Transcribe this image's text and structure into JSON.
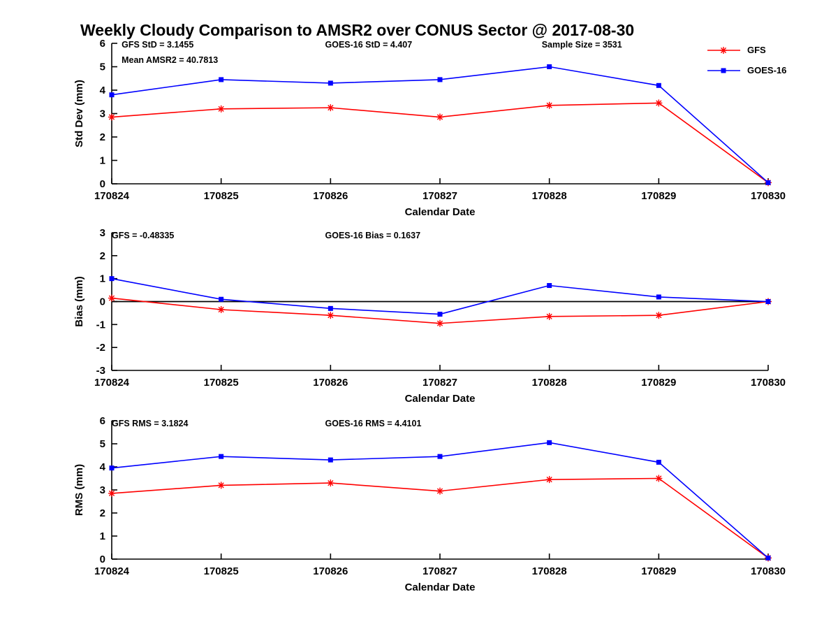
{
  "title": "Weekly Cloudy Comparison to AMSR2 over CONUS Sector @ 2017-08-30",
  "colors": {
    "gfs": "#FF0000",
    "goes16": "#0000FF",
    "axis": "#000000"
  },
  "legend": {
    "items": [
      {
        "label": "GFS",
        "marker": "asterisk",
        "color": "#FF0000"
      },
      {
        "label": "GOES-16",
        "marker": "square",
        "color": "#0000FF"
      }
    ]
  },
  "chart_data": [
    {
      "type": "line",
      "title": "",
      "xlabel": "Calendar Date",
      "ylabel": "Std Dev (mm)",
      "categories": [
        "170824",
        "170825",
        "170826",
        "170827",
        "170828",
        "170829",
        "170830"
      ],
      "ylim": [
        0,
        6
      ],
      "yticks": [
        0,
        1,
        2,
        3,
        4,
        5,
        6
      ],
      "zero_line": false,
      "annotations": [
        {
          "text": "GFS StD = 3.1455",
          "fx": 0.015,
          "dy": 6
        },
        {
          "text": "Mean AMSR2 = 40.7813",
          "fx": 0.015,
          "dy": 28
        },
        {
          "text": "GOES-16 StD = 4.407",
          "fx": 0.325,
          "dy": 6
        },
        {
          "text": "Sample Size = 3531",
          "fx": 0.655,
          "dy": 6
        }
      ],
      "series": [
        {
          "name": "GFS",
          "color": "#FF0000",
          "marker": "asterisk",
          "values": [
            2.85,
            3.2,
            3.25,
            2.85,
            3.35,
            3.45,
            0.05
          ]
        },
        {
          "name": "GOES-16",
          "color": "#0000FF",
          "marker": "square",
          "values": [
            3.8,
            4.45,
            4.3,
            4.45,
            5.0,
            4.2,
            0.05
          ]
        }
      ]
    },
    {
      "type": "line",
      "title": "",
      "xlabel": "Calendar Date",
      "ylabel": "Bias (mm)",
      "categories": [
        "170824",
        "170825",
        "170826",
        "170827",
        "170828",
        "170829",
        "170830"
      ],
      "ylim": [
        -3,
        3
      ],
      "yticks": [
        -3,
        -2,
        -1,
        0,
        1,
        2,
        3
      ],
      "zero_line": true,
      "annotations": [
        {
          "text": "GFS = -0.48335",
          "fx": 0.0,
          "dy": 8
        },
        {
          "text": "GOES-16 Bias  = 0.1637",
          "fx": 0.325,
          "dy": 8
        }
      ],
      "series": [
        {
          "name": "GFS",
          "color": "#FF0000",
          "marker": "asterisk",
          "values": [
            0.15,
            -0.35,
            -0.6,
            -0.95,
            -0.65,
            -0.6,
            0.0
          ]
        },
        {
          "name": "GOES-16",
          "color": "#0000FF",
          "marker": "square",
          "values": [
            1.0,
            0.1,
            -0.3,
            -0.55,
            0.7,
            0.2,
            0.0
          ]
        }
      ]
    },
    {
      "type": "line",
      "title": "",
      "xlabel": "Calendar Date",
      "ylabel": "RMS (mm)",
      "categories": [
        "170824",
        "170825",
        "170826",
        "170827",
        "170828",
        "170829",
        "170830"
      ],
      "ylim": [
        0,
        6
      ],
      "yticks": [
        0,
        1,
        2,
        3,
        4,
        5,
        6
      ],
      "zero_line": false,
      "annotations": [
        {
          "text": "GFS RMS = 3.1824",
          "fx": 0.0,
          "dy": 8
        },
        {
          "text": "GOES-16 RMS = 4.4101",
          "fx": 0.325,
          "dy": 8
        }
      ],
      "series": [
        {
          "name": "GFS",
          "color": "#FF0000",
          "marker": "asterisk",
          "values": [
            2.85,
            3.2,
            3.3,
            2.95,
            3.45,
            3.5,
            0.05
          ]
        },
        {
          "name": "GOES-16",
          "color": "#0000FF",
          "marker": "square",
          "values": [
            3.95,
            4.45,
            4.3,
            4.45,
            5.05,
            4.2,
            0.05
          ]
        }
      ]
    }
  ]
}
